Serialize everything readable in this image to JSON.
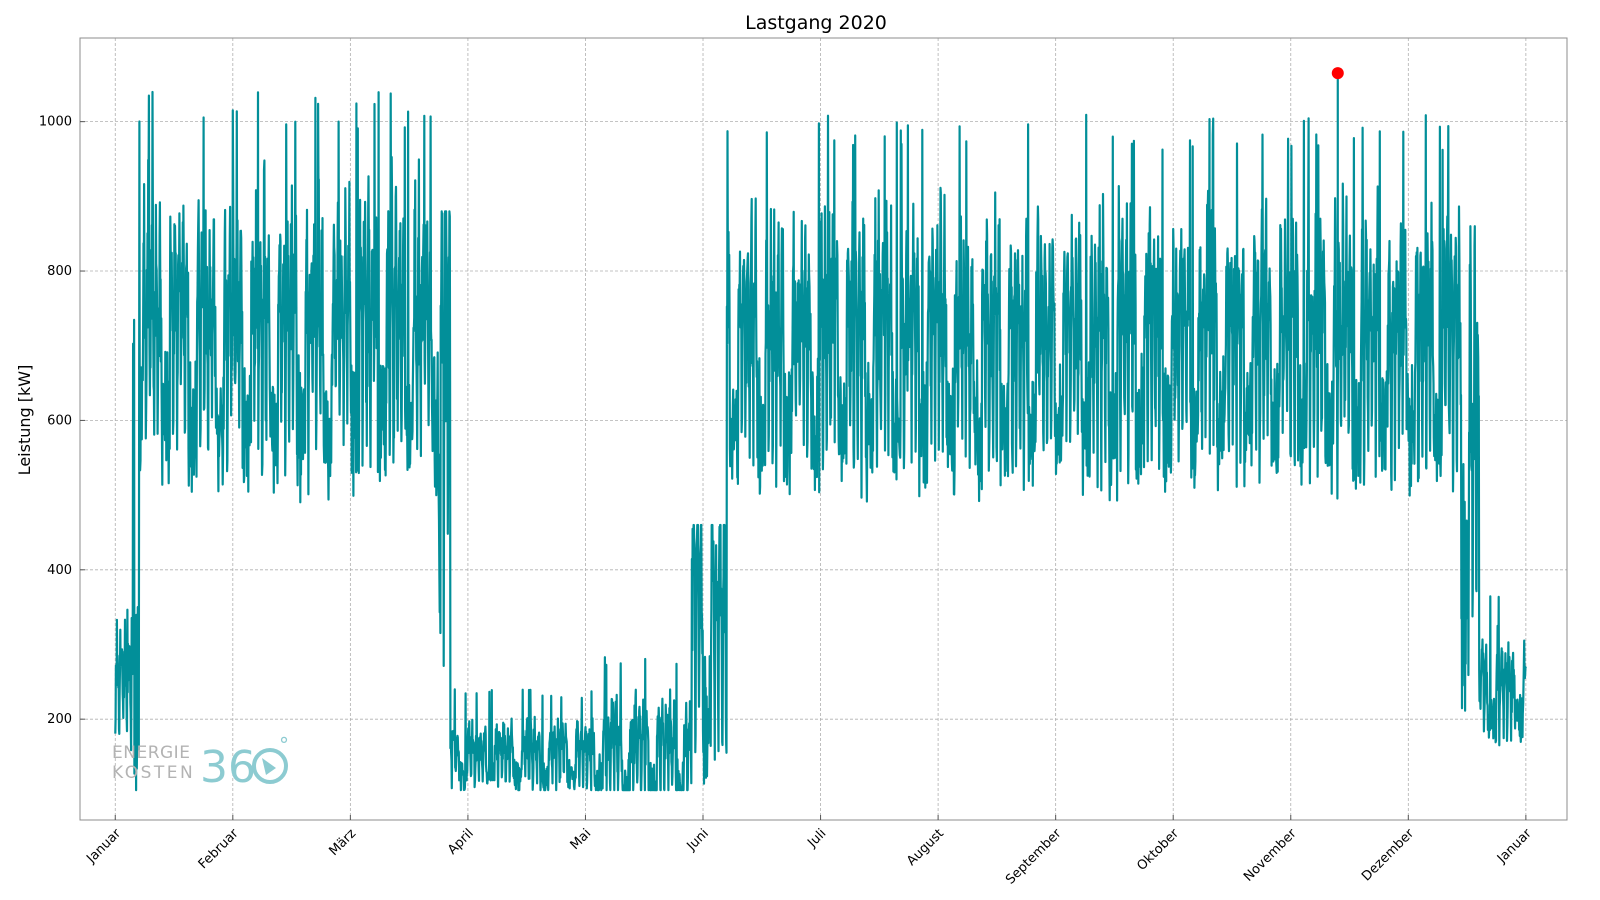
{
  "chart_data": {
    "type": "line",
    "title": "Lastgang 2020",
    "xlabel": "",
    "ylabel": "Leistung [kW]",
    "xlim": [
      -0.3,
      12.35
    ],
    "ylim": [
      65,
      1112
    ],
    "yticks": [
      200,
      400,
      600,
      800,
      1000
    ],
    "xticks": [
      {
        "label": "Januar",
        "pos": 0
      },
      {
        "label": "Februar",
        "pos": 1
      },
      {
        "label": "März",
        "pos": 2
      },
      {
        "label": "April",
        "pos": 3
      },
      {
        "label": "Mai",
        "pos": 4
      },
      {
        "label": "Juni",
        "pos": 5
      },
      {
        "label": "Juli",
        "pos": 6
      },
      {
        "label": "August",
        "pos": 7
      },
      {
        "label": "September",
        "pos": 8
      },
      {
        "label": "Oktober",
        "pos": 9
      },
      {
        "label": "November",
        "pos": 10
      },
      {
        "label": "Dezember",
        "pos": 11
      },
      {
        "label": "Januar",
        "pos": 12
      }
    ],
    "grid": true,
    "series": [
      {
        "color": "#028f99",
        "x_unit": "Monat (0 = 1. Januar 2020)",
        "segments": [
          {
            "from": 0.0,
            "to": 0.15,
            "base": 215,
            "amp": 70,
            "peak": 350
          },
          {
            "from": 0.15,
            "to": 0.2,
            "base": 300,
            "amp": 300,
            "peak": 780
          },
          {
            "from": 0.2,
            "to": 2.75,
            "base": 640,
            "amp": 170,
            "peak": 1040
          },
          {
            "from": 2.75,
            "to": 2.85,
            "base": 500,
            "amp": 300,
            "peak": 880
          },
          {
            "from": 2.85,
            "to": 4.1,
            "base": 135,
            "amp": 40,
            "peak": 240
          },
          {
            "from": 4.1,
            "to": 4.9,
            "base": 130,
            "amp": 70,
            "peak": 285
          },
          {
            "from": 4.9,
            "to": 5.2,
            "base": 260,
            "amp": 180,
            "peak": 460
          },
          {
            "from": 5.2,
            "to": 11.45,
            "base": 630,
            "amp": 160,
            "peak": 1010
          },
          {
            "from": 11.45,
            "to": 11.6,
            "base": 450,
            "amp": 280,
            "peak": 860
          },
          {
            "from": 11.6,
            "to": 12.0,
            "base": 215,
            "amp": 60,
            "peak": 370
          }
        ]
      }
    ],
    "peak_marker": {
      "x": 10.4,
      "y": 1065,
      "color": "#ff0000"
    }
  },
  "logo": {
    "line1": "ENERGIE",
    "line2": "KOSTEN",
    "number": "36",
    "degree": "°"
  },
  "colors": {
    "line": "#028f99",
    "marker": "#ff0000",
    "logo_accent": "#8ccbd1"
  }
}
